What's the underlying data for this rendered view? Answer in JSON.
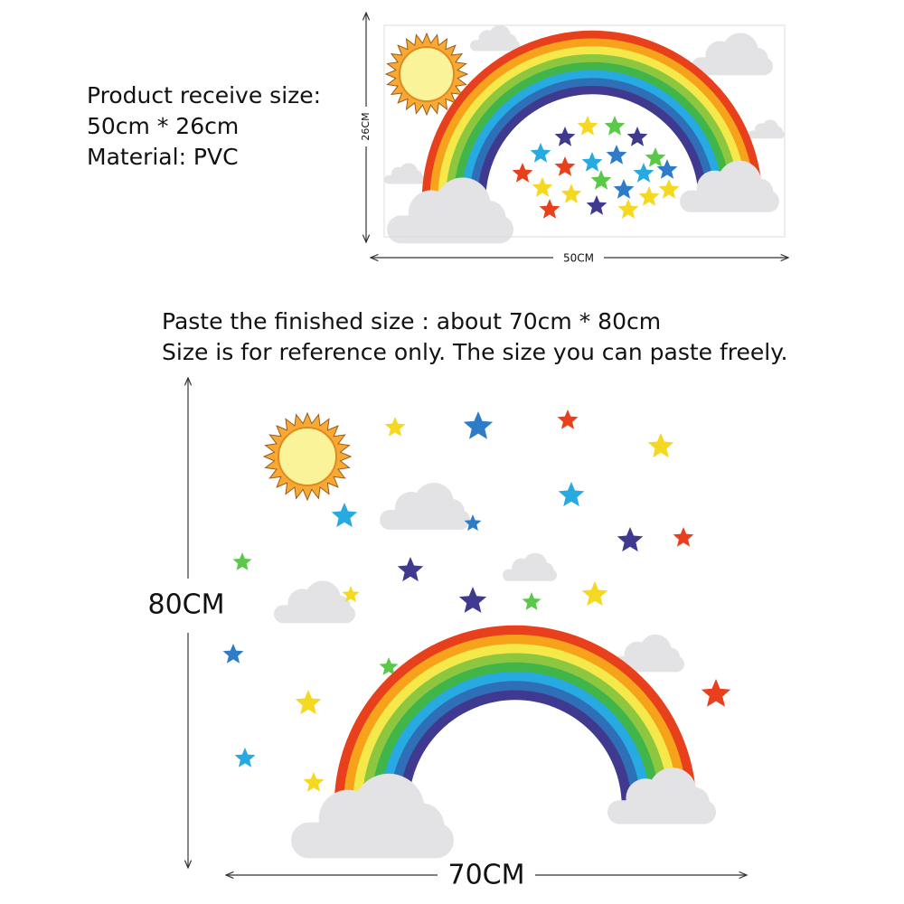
{
  "top": {
    "lines": [
      "Product receive size:",
      "50cm * 26cm",
      "Material: PVC"
    ],
    "height_label": "26CM",
    "width_label": "50CM"
  },
  "bottom": {
    "lines": [
      "Paste the finished size : about 70cm * 80cm",
      "Size is for reference only. The size you can paste freely."
    ],
    "height_label": "80CM",
    "width_label": "70CM"
  }
}
